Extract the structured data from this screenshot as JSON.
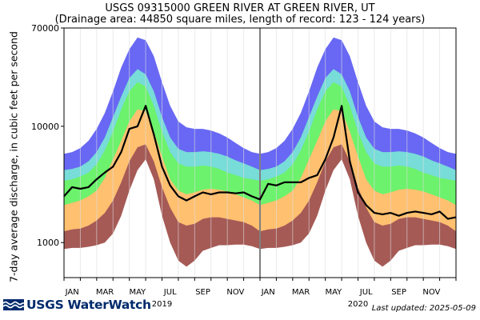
{
  "header": {
    "title": "USGS 09315000 GREEN RIVER AT GREEN RIVER, UT",
    "subtitle": "(Drainage area: 44850 square miles, length of record: 123 - 124 years)"
  },
  "footer": {
    "logo_text": "USGS WaterWatch",
    "last_updated": "Last updated: 2025-05-09"
  },
  "colors": {
    "band_1": "#a55a56",
    "band_2": "#ffc070",
    "band_3": "#6cf26c",
    "band_4": "#78dcd8",
    "band_5": "#6868f4",
    "observed_line": "#000000",
    "year_divider": "#808080",
    "logo": "#002a6c"
  },
  "chart_data": {
    "type": "area",
    "title": "USGS 09315000 GREEN RIVER AT GREEN RIVER, UT",
    "subtitle": "(Drainage area: 44850 square miles, length of record: 123 - 124 years)",
    "ylabel": "7-day average discharge, in cubic feet per second",
    "yscale": "log",
    "ylim": [
      500,
      70000
    ],
    "yticks": [
      1000,
      10000,
      70000
    ],
    "ytick_labels": [
      "1000",
      "10000",
      "70000"
    ],
    "xlim": [
      0,
      24
    ],
    "xunit": "months since start of 2019",
    "xtick_labels": [
      "JAN",
      "MAR",
      "MAY",
      "JUL",
      "SEP",
      "NOV",
      "JAN",
      "MAR",
      "MAY",
      "JUL",
      "SEP",
      "NOV"
    ],
    "xtick_positions": [
      0.5,
      2.5,
      4.5,
      6.5,
      8.5,
      10.5,
      12.5,
      14.5,
      16.5,
      18.5,
      20.5,
      22.5
    ],
    "year_labels": [
      {
        "text": "2019",
        "x": 6
      },
      {
        "text": "2020",
        "x": 18
      }
    ],
    "year_divider_x": 12,
    "grid": "vertical",
    "x": [
      0,
      0.5,
      1,
      1.5,
      2,
      2.5,
      3,
      3.5,
      4,
      4.5,
      5,
      5.5,
      6,
      6.5,
      7,
      7.5,
      8,
      8.5,
      9,
      9.5,
      10,
      10.5,
      11,
      11.5,
      12,
      12.5,
      13,
      13.5,
      14,
      14.5,
      15,
      15.5,
      16,
      16.5,
      17,
      17.5,
      18,
      18.5,
      19,
      19.5,
      20,
      20.5,
      21,
      21.5,
      22,
      22.5,
      23,
      23.5,
      24
    ],
    "percentile_bands": [
      {
        "values": [
          880,
          900,
          900,
          920,
          950,
          1000,
          1200,
          1700,
          2800,
          4200,
          5200,
          3500,
          1700,
          1000,
          700,
          620,
          700,
          850,
          900,
          950,
          950,
          960,
          960,
          930,
          880,
          900,
          900,
          920,
          950,
          1000,
          1200,
          1700,
          2800,
          4200,
          5200,
          3500,
          1700,
          1000,
          700,
          620,
          700,
          850,
          900,
          950,
          950,
          960,
          960,
          930,
          880
        ]
      },
      {
        "values": [
          1250,
          1300,
          1320,
          1400,
          1550,
          1800,
          2300,
          3300,
          5000,
          6600,
          7000,
          5000,
          3000,
          2000,
          1500,
          1400,
          1450,
          1600,
          1650,
          1650,
          1600,
          1550,
          1500,
          1400,
          1250,
          1300,
          1320,
          1400,
          1550,
          1800,
          2300,
          3300,
          5000,
          6600,
          7000,
          5000,
          3000,
          2000,
          1500,
          1400,
          1450,
          1600,
          1650,
          1650,
          1600,
          1550,
          1500,
          1400,
          1250
        ]
      },
      {
        "values": [
          2100,
          2200,
          2300,
          2500,
          2800,
          3600,
          5200,
          7500,
          11000,
          14000,
          13500,
          9000,
          5500,
          3500,
          2800,
          2600,
          2700,
          2850,
          2900,
          2850,
          2750,
          2600,
          2450,
          2300,
          2100,
          2200,
          2300,
          2500,
          2800,
          3600,
          5200,
          7500,
          11000,
          14000,
          13500,
          9000,
          5500,
          3500,
          2800,
          2600,
          2700,
          2850,
          2900,
          2850,
          2750,
          2600,
          2450,
          2300,
          2100
        ]
      },
      {
        "values": [
          3400,
          3500,
          3700,
          4000,
          4700,
          6200,
          9000,
          14000,
          20000,
          24000,
          22000,
          15000,
          9000,
          6000,
          4800,
          4500,
          4500,
          4600,
          4500,
          4300,
          4000,
          3800,
          3600,
          3500,
          3400,
          3500,
          3700,
          4000,
          4700,
          6200,
          9000,
          14000,
          20000,
          24000,
          22000,
          15000,
          9000,
          6000,
          4800,
          4500,
          4500,
          4600,
          4500,
          4300,
          4000,
          3800,
          3600,
          3500,
          3400
        ]
      },
      {
        "values": [
          4200,
          4300,
          4500,
          5000,
          6000,
          8000,
          12000,
          18000,
          26000,
          31000,
          28000,
          20000,
          12000,
          8000,
          6400,
          6000,
          6000,
          6100,
          6000,
          5800,
          5500,
          5100,
          4800,
          4500,
          4200,
          4300,
          4500,
          5000,
          6000,
          8000,
          12000,
          18000,
          26000,
          31000,
          28000,
          20000,
          12000,
          8000,
          6400,
          6000,
          6000,
          6100,
          6000,
          5800,
          5500,
          5100,
          4800,
          4500,
          4200
        ]
      },
      {
        "values": [
          5800,
          6000,
          6500,
          7500,
          9500,
          13000,
          20000,
          32000,
          46000,
          58000,
          55000,
          40000,
          24000,
          15000,
          11000,
          9800,
          9500,
          9500,
          9200,
          8700,
          8000,
          7200,
          6500,
          6000,
          5800,
          6000,
          6500,
          7500,
          9500,
          13000,
          20000,
          32000,
          46000,
          58000,
          55000,
          40000,
          24000,
          15000,
          11000,
          9800,
          9500,
          9500,
          9200,
          8700,
          8000,
          7200,
          6500,
          6000,
          5800
        ]
      }
    ],
    "series": [
      {
        "values": [
          2500,
          3000,
          2900,
          3000,
          3500,
          4000,
          4500,
          6000,
          9500,
          10000,
          15000,
          8500,
          4500,
          3100,
          2500,
          2300,
          2500,
          2700,
          2600,
          2700,
          2700,
          2650,
          2700,
          2500,
          2350,
          3200,
          3100,
          3300,
          3300,
          3300,
          3600,
          3800,
          5200,
          8000,
          15000,
          5000,
          2700,
          2100,
          1800,
          1750,
          1800,
          1700,
          1800,
          1850,
          1800,
          1750,
          1850,
          1600,
          1650
        ]
      }
    ]
  }
}
